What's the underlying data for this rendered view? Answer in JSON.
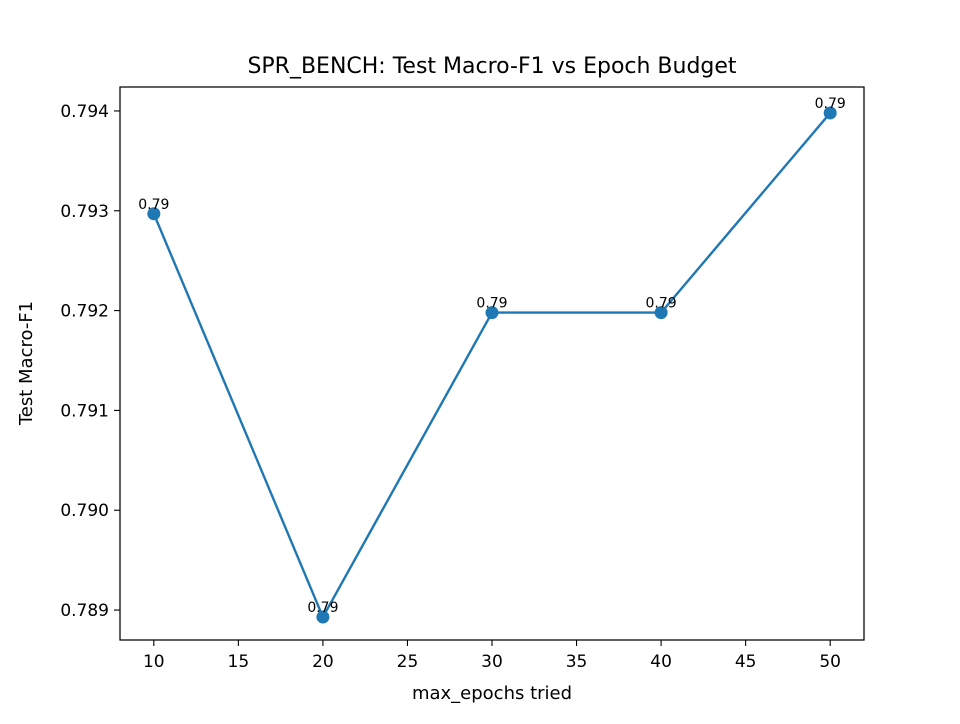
{
  "chart_data": {
    "type": "line",
    "title": "SPR_BENCH: Test Macro-F1 vs Epoch Budget",
    "xlabel": "max_epochs tried",
    "ylabel": "Test Macro-F1",
    "x": [
      10,
      20,
      30,
      40,
      50
    ],
    "series": [
      {
        "values": [
          0.79297,
          0.78893,
          0.79198,
          0.79198,
          0.79398
        ],
        "data_labels": [
          "0.79",
          "0.79",
          "0.79",
          "0.79",
          "0.79"
        ],
        "color": "#1f77b4",
        "marker": "circle"
      }
    ],
    "xlim": [
      8.0,
      52.0
    ],
    "ylim": [
      0.7887,
      0.79424
    ],
    "xticks": [
      {
        "value": 10,
        "label": "10"
      },
      {
        "value": 15,
        "label": "15"
      },
      {
        "value": 20,
        "label": "20"
      },
      {
        "value": 25,
        "label": "25"
      },
      {
        "value": 30,
        "label": "30"
      },
      {
        "value": 35,
        "label": "35"
      },
      {
        "value": 40,
        "label": "40"
      },
      {
        "value": 45,
        "label": "45"
      },
      {
        "value": 50,
        "label": "50"
      }
    ],
    "yticks": [
      {
        "value": 0.789,
        "label": "0.789"
      },
      {
        "value": 0.79,
        "label": "0.790"
      },
      {
        "value": 0.791,
        "label": "0.791"
      },
      {
        "value": 0.792,
        "label": "0.792"
      },
      {
        "value": 0.793,
        "label": "0.793"
      },
      {
        "value": 0.794,
        "label": "0.794"
      }
    ],
    "grid": false,
    "legend": "none"
  }
}
